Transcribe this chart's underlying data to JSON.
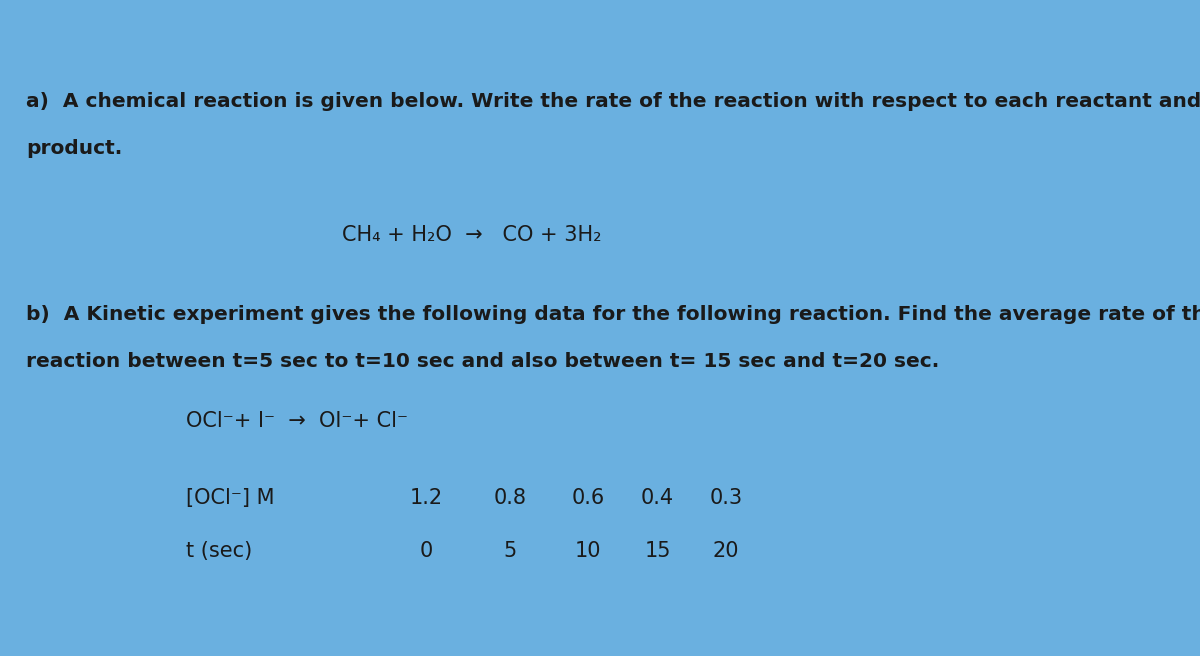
{
  "bg_main": "#6ab0e0",
  "bg_top_bar": "#d8e4f0",
  "bg_thin_line": "#4477cc",
  "text_color": "#1a1a1a",
  "part_a_line1": "a)  A chemical reaction is given below. Write the rate of the reaction with respect to each reactant and",
  "part_a_line2": "product.",
  "reaction_a": "CH₄ + H₂O  →   CO + 3H₂",
  "part_b_line1": "b)  A Kinetic experiment gives the following data for the following reaction. Find the average rate of the",
  "part_b_line2": "reaction between t=5 sec to t=10 sec and also between t= 15 sec and t=20 sec.",
  "reaction_b": "OCl⁻+ I⁻  →  OI⁻+ Cl⁻",
  "table_row1_label": "[OCl⁻] M",
  "table_row2_label": "t (sec)",
  "concentration_values": [
    "1.2",
    "0.8",
    "0.6",
    "0.4",
    "0.3"
  ],
  "time_values": [
    "0",
    "5",
    "10",
    "15",
    "20"
  ],
  "figwidth": 12.0,
  "figheight": 6.56,
  "dpi": 100,
  "fs_text": 14.5,
  "fs_reaction": 15,
  "fs_table": 15
}
